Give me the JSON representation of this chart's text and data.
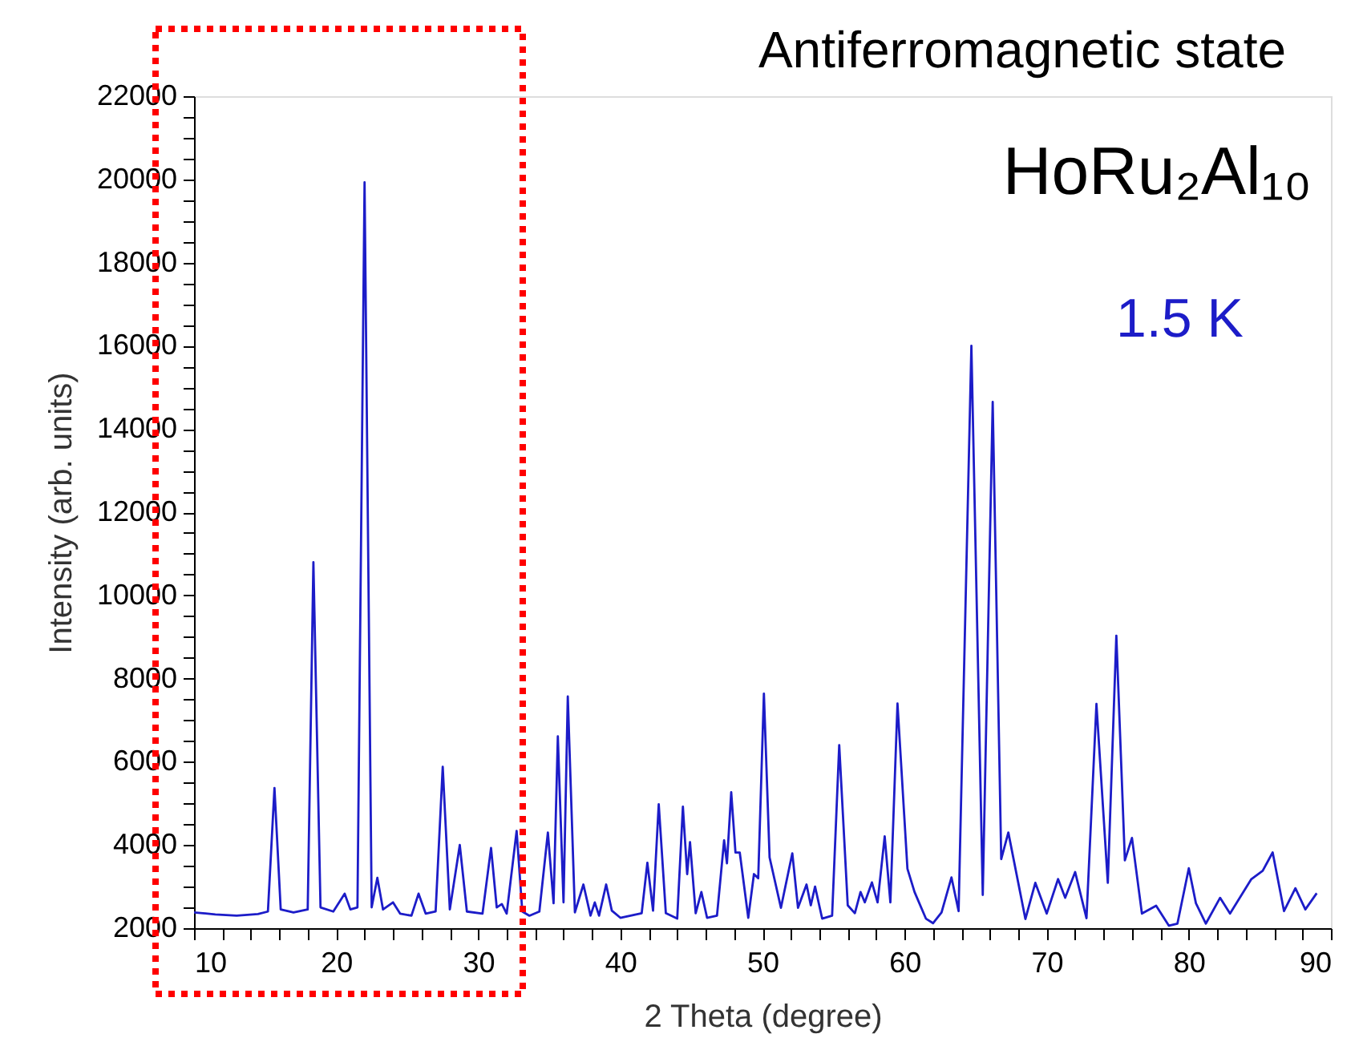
{
  "chart_data": {
    "type": "line",
    "title": "Antiferromagnetic state",
    "xlabel": "2 Theta (degree)",
    "ylabel": "Intensity (arb. units)",
    "annotations": [
      "HoRu₂Al₁₀"
    ],
    "xlim": [
      10,
      90
    ],
    "ylim": [
      2000,
      22000
    ],
    "xticks": [
      10,
      {
        "value": 12,
        "label": null
      },
      {
        "value": 14,
        "label": null
      },
      {
        "value": 16,
        "label": null
      },
      {
        "value": 18,
        "label": null
      },
      20,
      {
        "value": 22,
        "label": null
      },
      {
        "value": 24,
        "label": null
      },
      {
        "value": 26,
        "label": null
      },
      {
        "value": 28,
        "label": null
      },
      30,
      {
        "value": 32,
        "label": null
      },
      {
        "value": 34,
        "label": null
      },
      {
        "value": 36,
        "label": null
      },
      {
        "value": 38,
        "label": null
      },
      40,
      {
        "value": 42,
        "label": null
      },
      {
        "value": 44,
        "label": null
      },
      {
        "value": 46,
        "label": null
      },
      {
        "value": 48,
        "label": null
      },
      50,
      {
        "value": 52,
        "label": null
      },
      {
        "value": 54,
        "label": null
      },
      {
        "value": 56,
        "label": null
      },
      {
        "value": 58,
        "label": null
      },
      60,
      {
        "value": 62,
        "label": null
      },
      {
        "value": 64,
        "label": null
      },
      {
        "value": 66,
        "label": null
      },
      {
        "value": 68,
        "label": null
      },
      70,
      {
        "value": 72,
        "label": null
      },
      {
        "value": 74,
        "label": null
      },
      {
        "value": 76,
        "label": null
      },
      {
        "value": 78,
        "label": null
      },
      80,
      {
        "value": 82,
        "label": null
      },
      {
        "value": 84,
        "label": null
      },
      {
        "value": 86,
        "label": null
      },
      {
        "value": 88,
        "label": null
      },
      90
    ],
    "yticks": [
      2000,
      {
        "value": 2500,
        "label": null
      },
      {
        "value": 3000,
        "label": null
      },
      {
        "value": 3500,
        "label": null
      },
      4000,
      {
        "value": 4500,
        "label": null
      },
      {
        "value": 5000,
        "label": null
      },
      {
        "value": 5500,
        "label": null
      },
      6000,
      {
        "value": 6500,
        "label": null
      },
      {
        "value": 7000,
        "label": null
      },
      {
        "value": 7500,
        "label": null
      },
      8000,
      {
        "value": 8500,
        "label": null
      },
      {
        "value": 9000,
        "label": null
      },
      {
        "value": 9500,
        "label": null
      },
      10000,
      {
        "value": 10500,
        "label": null
      },
      {
        "value": 11000,
        "label": null
      },
      {
        "value": 11500,
        "label": null
      },
      12000,
      {
        "value": 12500,
        "label": null
      },
      {
        "value": 13000,
        "label": null
      },
      {
        "value": 13500,
        "label": null
      },
      14000,
      {
        "value": 14500,
        "label": null
      },
      {
        "value": 15000,
        "label": null
      },
      {
        "value": 15500,
        "label": null
      },
      16000,
      {
        "value": 16500,
        "label": null
      },
      {
        "value": 17000,
        "label": null
      },
      {
        "value": 17500,
        "label": null
      },
      18000,
      {
        "value": 18500,
        "label": null
      },
      {
        "value": 19000,
        "label": null
      },
      {
        "value": 19500,
        "label": null
      },
      20000,
      {
        "value": 20500,
        "label": null
      },
      {
        "value": 21000,
        "label": null
      },
      {
        "value": 21500,
        "label": null
      },
      22000
    ],
    "grid": false,
    "marker": "none",
    "line_style": "solid",
    "series": [
      {
        "name": "1.5 K",
        "color": "#1c1cc8",
        "x": [
          10.0,
          11.5,
          13.0,
          14.5,
          15.2,
          15.66,
          16.1,
          17.0,
          18.0,
          18.4,
          18.9,
          19.8,
          20.6,
          21.0,
          21.5,
          22.0,
          22.5,
          22.9,
          23.3,
          24.0,
          24.5,
          25.3,
          25.8,
          26.3,
          27.0,
          27.5,
          28.0,
          28.7,
          29.2,
          30.3,
          30.9,
          31.3,
          31.66,
          32.0,
          32.7,
          33.1,
          33.6,
          34.3,
          34.9,
          35.3,
          35.6,
          36.0,
          36.3,
          36.8,
          37.4,
          37.9,
          38.2,
          38.5,
          39.0,
          39.4,
          40.0,
          41.5,
          41.9,
          42.3,
          42.7,
          43.2,
          44.0,
          44.4,
          44.7,
          44.9,
          45.3,
          45.7,
          46.1,
          46.8,
          47.3,
          47.5,
          47.8,
          48.1,
          48.4,
          49.0,
          49.4,
          49.7,
          50.1,
          50.5,
          51.3,
          52.1,
          52.5,
          53.1,
          53.4,
          53.7,
          54.2,
          54.9,
          55.4,
          56.0,
          56.5,
          56.9,
          57.2,
          57.7,
          58.1,
          58.6,
          59.0,
          59.5,
          60.2,
          60.7,
          61.5,
          62.0,
          62.6,
          63.3,
          63.8,
          64.7,
          65.5,
          66.2,
          66.8,
          67.3,
          68.5,
          69.2,
          70.0,
          70.8,
          71.3,
          72.0,
          72.8,
          73.5,
          74.3,
          74.9,
          75.5,
          76.0,
          76.7,
          77.7,
          78.6,
          79.2,
          80.0,
          80.5,
          81.2,
          82.2,
          82.9,
          84.4,
          85.2,
          85.9,
          86.7,
          87.5,
          88.2,
          89.0
        ],
        "values": [
          2380,
          2330,
          2300,
          2340,
          2400,
          5370,
          2450,
          2380,
          2450,
          10800,
          2500,
          2400,
          2830,
          2450,
          2500,
          19930,
          2500,
          3210,
          2450,
          2620,
          2350,
          2300,
          2830,
          2350,
          2400,
          5880,
          2450,
          4000,
          2400,
          2350,
          3930,
          2500,
          2580,
          2350,
          4340,
          2400,
          2300,
          2400,
          4300,
          2600,
          6610,
          2620,
          7570,
          2380,
          3050,
          2300,
          2620,
          2300,
          3050,
          2420,
          2250,
          2360,
          3570,
          2420,
          4980,
          2360,
          2230,
          4920,
          3300,
          4070,
          2360,
          2870,
          2250,
          2300,
          4110,
          3560,
          5270,
          3820,
          3820,
          2250,
          3300,
          3200,
          7640,
          3700,
          2490,
          3800,
          2490,
          3050,
          2550,
          3000,
          2230,
          2300,
          6400,
          2550,
          2360,
          2870,
          2620,
          3100,
          2620,
          4210,
          2620,
          7400,
          3430,
          2870,
          2230,
          2120,
          2380,
          3220,
          2410,
          16000,
          2800,
          14650,
          3660,
          4300,
          2220,
          3090,
          2350,
          3180,
          2730,
          3350,
          2240,
          7390,
          3090,
          9030,
          3630,
          4170,
          2350,
          2540,
          2060,
          2110,
          3440,
          2600,
          2110,
          2730,
          2350,
          3180,
          3380,
          3820,
          2410,
          2960,
          2450,
          2840
        ]
      }
    ]
  }
}
